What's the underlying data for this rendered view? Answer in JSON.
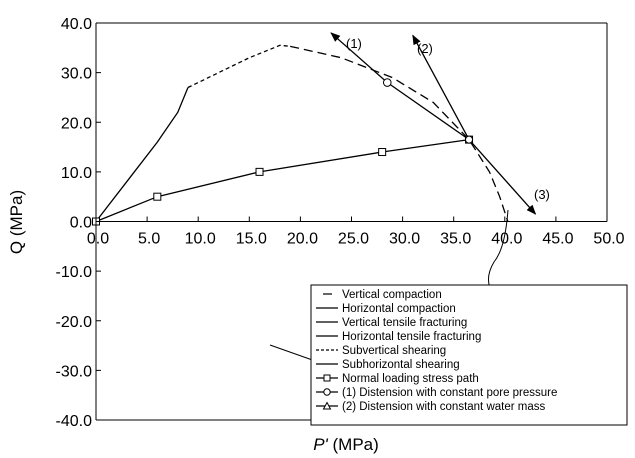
{
  "chart_data": {
    "type": "line",
    "xlabel_italic": "P'",
    "xlabel_rest": " (MPa)",
    "ylabel": "Q (MPa)",
    "xlim": [
      0,
      50
    ],
    "ylim": [
      -40,
      40
    ],
    "x_ticks": [
      "0.0",
      "5.0",
      "10.0",
      "15.0",
      "20.0",
      "25.0",
      "30.0",
      "35.0",
      "40.0",
      "45.0",
      "50.0"
    ],
    "y_ticks": [
      "40.0",
      "30.0",
      "20.0",
      "10.0",
      "0.0",
      "-10.0",
      "-20.0",
      "-30.0",
      "-40.0"
    ],
    "grid": false,
    "legend_position": "bottom-right",
    "series": [
      {
        "name": "Vertical tensile fracturing",
        "style": "solid",
        "x": [
          0,
          3,
          6,
          8,
          9
        ],
        "y": [
          0,
          8,
          16,
          22,
          27
        ]
      },
      {
        "name": "Subvertical shearing",
        "style": "dashed",
        "x": [
          9,
          12,
          15,
          18,
          19
        ],
        "y": [
          27,
          30,
          33,
          35.5,
          35.3
        ]
      },
      {
        "name": "Vertical compaction",
        "style": "longdash",
        "x": [
          19,
          24,
          29,
          33,
          36.5,
          38.5,
          39.5,
          40.3
        ],
        "y": [
          35.3,
          33,
          29,
          24,
          16.5,
          10,
          5,
          0
        ]
      },
      {
        "name": "Normal loading stress path",
        "style": "solid",
        "marker": "square",
        "x": [
          0,
          6,
          16,
          28,
          36.5
        ],
        "y": [
          0,
          5,
          10,
          14,
          16.5
        ]
      },
      {
        "name": "(1) Distension with constant pore pressure",
        "style": "solid",
        "marker": "circle",
        "x": [
          36.5,
          28.5,
          23
        ],
        "y": [
          16.5,
          28,
          38
        ]
      },
      {
        "name": "(2) Distension with constant water mass",
        "style": "solid",
        "marker": "triangle",
        "x": [
          36.5,
          31
        ],
        "y": [
          16.5,
          37.5
        ]
      },
      {
        "name": "(3)",
        "style": "solid",
        "x": [
          36.5,
          43
        ],
        "y": [
          16.5,
          1.5
        ]
      }
    ],
    "annotations": [
      "(1)",
      "(2)",
      "(3)"
    ],
    "legend": [
      {
        "label": "Vertical compaction",
        "symbol": "dash"
      },
      {
        "label": "Horizontal compaction",
        "symbol": "line"
      },
      {
        "label": "Vertical tensile fracturing",
        "symbol": "line"
      },
      {
        "label": "Horizontal tensile fracturing",
        "symbol": "line"
      },
      {
        "label": "Subvertical shearing",
        "symbol": "dashed"
      },
      {
        "label": "Subhorizontal shearing",
        "symbol": "line"
      },
      {
        "label": "Normal loading stress path",
        "symbol": "square"
      },
      {
        "label": "(1) Distension with constant pore pressure",
        "symbol": "circle"
      },
      {
        "label": "(2) Distension with constant water mass",
        "symbol": "triangle"
      }
    ]
  }
}
